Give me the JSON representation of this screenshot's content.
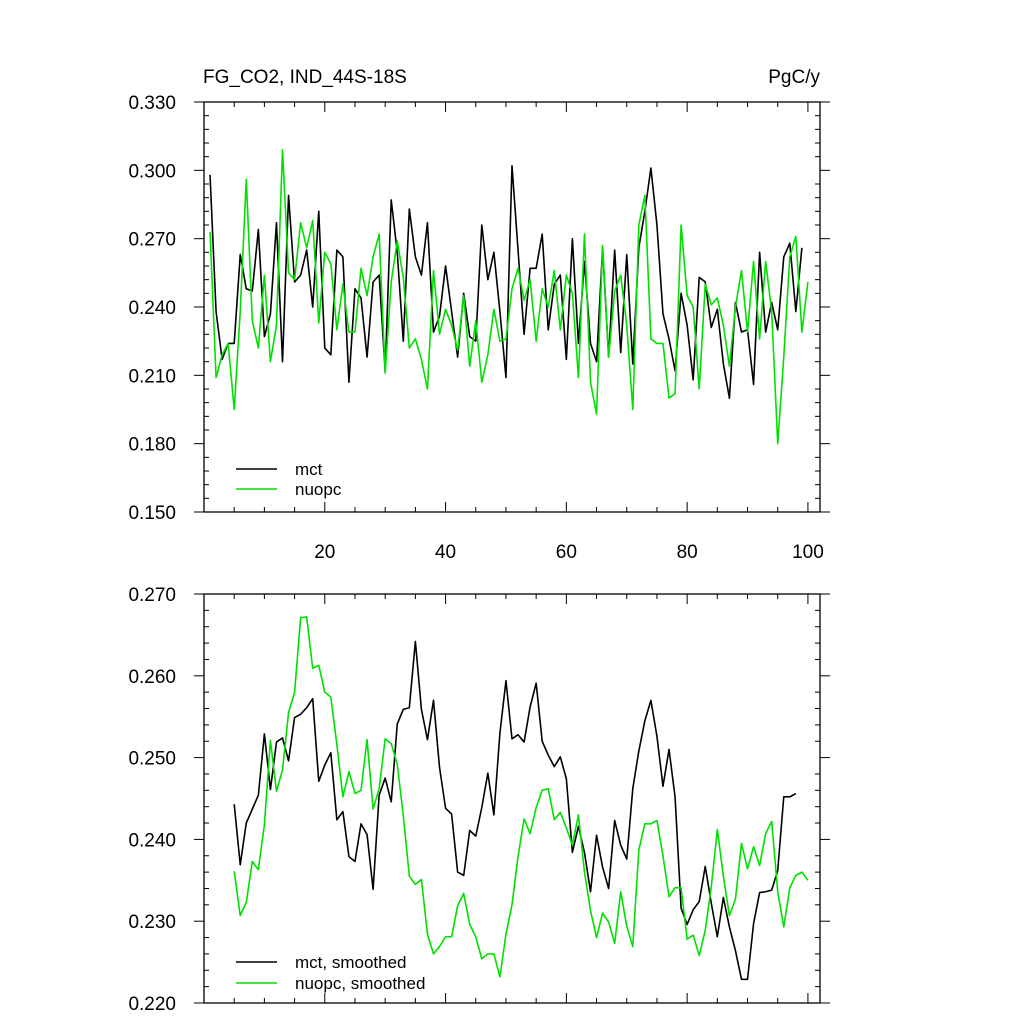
{
  "chart_data": [
    {
      "type": "line",
      "title_left": "FG_CO2, IND_44S-18S",
      "title_right": "PgC/y",
      "xlim": [
        0,
        102
      ],
      "ylim": [
        0.15,
        0.33
      ],
      "xticks": [
        20,
        40,
        60,
        80,
        100
      ],
      "yticks": [
        0.15,
        0.18,
        0.21,
        0.24,
        0.27,
        0.3,
        0.33
      ],
      "ytick_labels": [
        "0.150",
        "0.180",
        "0.210",
        "0.240",
        "0.270",
        "0.300",
        "0.330"
      ],
      "legend": {
        "placement": "bottom-left"
      },
      "series": [
        {
          "name": "mct",
          "color": "#000000",
          "x_start": 1,
          "values": [
            0.298,
            0.238,
            0.217,
            0.224,
            0.224,
            0.263,
            0.248,
            0.247,
            0.274,
            0.227,
            0.237,
            0.277,
            0.216,
            0.289,
            0.251,
            0.254,
            0.265,
            0.24,
            0.282,
            0.222,
            0.219,
            0.265,
            0.262,
            0.207,
            0.248,
            0.244,
            0.218,
            0.251,
            0.254,
            0.212,
            0.287,
            0.264,
            0.225,
            0.283,
            0.262,
            0.254,
            0.277,
            0.229,
            0.236,
            0.258,
            0.238,
            0.218,
            0.246,
            0.227,
            0.225,
            0.276,
            0.252,
            0.264,
            0.238,
            0.209,
            0.302,
            0.265,
            0.228,
            0.257,
            0.257,
            0.272,
            0.23,
            0.25,
            0.254,
            0.217,
            0.27,
            0.224,
            0.26,
            0.224,
            0.216,
            0.266,
            0.218,
            0.265,
            0.22,
            0.263,
            0.215,
            0.266,
            0.282,
            0.301,
            0.276,
            0.237,
            0.226,
            0.212,
            0.246,
            0.232,
            0.208,
            0.253,
            0.251,
            0.231,
            0.239,
            0.215,
            0.2,
            0.242,
            0.229,
            0.23,
            0.206,
            0.264,
            0.229,
            0.242,
            0.23,
            0.262,
            0.268,
            0.238,
            0.266
          ]
        },
        {
          "name": "nuopc",
          "color": "#00e000",
          "x_start": 1,
          "values": [
            0.273,
            0.209,
            0.219,
            0.224,
            0.195,
            0.238,
            0.296,
            0.234,
            0.222,
            0.254,
            0.216,
            0.232,
            0.309,
            0.255,
            0.252,
            0.277,
            0.266,
            0.278,
            0.233,
            0.264,
            0.259,
            0.23,
            0.25,
            0.229,
            0.229,
            0.257,
            0.245,
            0.262,
            0.272,
            0.211,
            0.251,
            0.269,
            0.253,
            0.222,
            0.226,
            0.217,
            0.204,
            0.256,
            0.228,
            0.239,
            0.232,
            0.221,
            0.245,
            0.214,
            0.234,
            0.207,
            0.219,
            0.239,
            0.225,
            0.226,
            0.248,
            0.257,
            0.243,
            0.252,
            0.225,
            0.248,
            0.24,
            0.256,
            0.23,
            0.254,
            0.246,
            0.209,
            0.272,
            0.207,
            0.193,
            0.267,
            0.218,
            0.247,
            0.254,
            0.232,
            0.195,
            0.276,
            0.289,
            0.226,
            0.224,
            0.224,
            0.2,
            0.202,
            0.276,
            0.245,
            0.24,
            0.204,
            0.25,
            0.241,
            0.244,
            0.232,
            0.214,
            0.24,
            0.256,
            0.229,
            0.26,
            0.226,
            0.26,
            0.238,
            0.18,
            0.218,
            0.262,
            0.271,
            0.229,
            0.251
          ]
        }
      ]
    },
    {
      "type": "line",
      "xlim": [
        0,
        102
      ],
      "ylim": [
        0.22,
        0.27
      ],
      "yticks": [
        0.22,
        0.23,
        0.24,
        0.25,
        0.26,
        0.27
      ],
      "ytick_labels": [
        "0.220",
        "0.230",
        "0.240",
        "0.250",
        "0.260",
        "0.270"
      ],
      "legend": {
        "placement": "bottom-left"
      },
      "series": [
        {
          "name": "mct, smoothed",
          "color": "#000000",
          "x_start": 5,
          "values": [
            0.2443,
            0.2369,
            0.242,
            0.2437,
            0.2454,
            0.2529,
            0.2461,
            0.2519,
            0.2524,
            0.2496,
            0.2549,
            0.2553,
            0.2561,
            0.2572,
            0.2471,
            0.2491,
            0.2506,
            0.2424,
            0.2434,
            0.2379,
            0.2373,
            0.2419,
            0.2406,
            0.2339,
            0.2454,
            0.2475,
            0.2446,
            0.2541,
            0.2559,
            0.2561,
            0.2642,
            0.2559,
            0.2522,
            0.257,
            0.2488,
            0.2438,
            0.2431,
            0.236,
            0.2356,
            0.2411,
            0.2404,
            0.2439,
            0.2481,
            0.243,
            0.253,
            0.2594,
            0.2523,
            0.2528,
            0.2519,
            0.2562,
            0.2591,
            0.252,
            0.2503,
            0.2489,
            0.2501,
            0.2474,
            0.2384,
            0.2416,
            0.2384,
            0.2336,
            0.2405,
            0.2366,
            0.234,
            0.2423,
            0.2393,
            0.2376,
            0.2462,
            0.2508,
            0.2545,
            0.257,
            0.2526,
            0.2465,
            0.251,
            0.2452,
            0.2316,
            0.2296,
            0.2314,
            0.2324,
            0.2367,
            0.2322,
            0.2281,
            0.2329,
            0.2293,
            0.2264,
            0.2229,
            0.2229,
            0.2297,
            0.2335,
            0.2336,
            0.2338,
            0.2362,
            0.2452,
            0.2452,
            0.2456
          ]
        },
        {
          "name": "nuopc, smoothed",
          "color": "#00e000",
          "x_start": 5,
          "values": [
            0.2361,
            0.2307,
            0.2323,
            0.2373,
            0.2363,
            0.2418,
            0.2521,
            0.2459,
            0.2485,
            0.2555,
            0.258,
            0.2671,
            0.2672,
            0.2609,
            0.2613,
            0.258,
            0.2574,
            0.2516,
            0.2452,
            0.2483,
            0.2456,
            0.246,
            0.2522,
            0.2437,
            0.2462,
            0.2523,
            0.2517,
            0.2492,
            0.2429,
            0.2355,
            0.2345,
            0.2351,
            0.2284,
            0.226,
            0.2269,
            0.2281,
            0.2281,
            0.2319,
            0.2334,
            0.2296,
            0.2281,
            0.2254,
            0.226,
            0.226,
            0.2232,
            0.2284,
            0.232,
            0.2379,
            0.2425,
            0.2407,
            0.2439,
            0.246,
            0.2462,
            0.2424,
            0.2433,
            0.2414,
            0.2393,
            0.243,
            0.236,
            0.2313,
            0.228,
            0.231,
            0.2299,
            0.2273,
            0.2336,
            0.2294,
            0.2269,
            0.2387,
            0.2419,
            0.2419,
            0.2423,
            0.238,
            0.233,
            0.2341,
            0.2341,
            0.2278,
            0.2283,
            0.2258,
            0.2289,
            0.2342,
            0.2412,
            0.2355,
            0.2307,
            0.2327,
            0.2395,
            0.2364,
            0.2391,
            0.2368,
            0.2407,
            0.2422,
            0.2336,
            0.2293,
            0.2341,
            0.2356,
            0.236,
            0.235
          ]
        }
      ]
    }
  ]
}
